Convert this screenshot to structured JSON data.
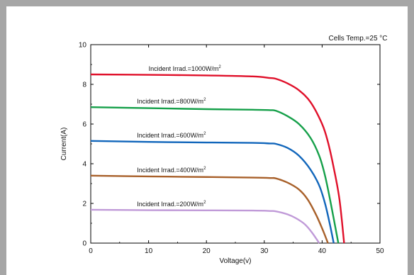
{
  "chart_data": {
    "type": "line",
    "title": "",
    "annotation": "Cells Temp.=25 °C",
    "xlabel": "Voltage(v)",
    "ylabel": "Current(A)",
    "xlim": [
      0,
      50
    ],
    "ylim": [
      0,
      10
    ],
    "xticks": [
      "0",
      "10",
      "20",
      "30",
      "40",
      "50"
    ],
    "yticks": [
      "0",
      "2",
      "4",
      "6",
      "8",
      "10"
    ],
    "grid": false,
    "series": [
      {
        "label_prefix": "Incident Irrad.=1000W/m",
        "label_sup": "2",
        "color": "#e0102a",
        "points": [
          [
            0,
            8.5
          ],
          [
            10,
            8.48
          ],
          [
            20,
            8.45
          ],
          [
            28,
            8.4
          ],
          [
            31,
            8.32
          ],
          [
            32,
            8.28
          ],
          [
            34,
            8.05
          ],
          [
            36,
            7.7
          ],
          [
            38,
            7.1
          ],
          [
            40,
            6.0
          ],
          [
            41,
            5.1
          ],
          [
            42,
            3.8
          ],
          [
            43,
            2.2
          ],
          [
            43.8,
            0
          ]
        ]
      },
      {
        "label_prefix": "Incident Irrad.=800W/m",
        "label_sup": "2",
        "color": "#16a04a",
        "points": [
          [
            0,
            6.85
          ],
          [
            10,
            6.8
          ],
          [
            20,
            6.75
          ],
          [
            28,
            6.72
          ],
          [
            31,
            6.7
          ],
          [
            32,
            6.67
          ],
          [
            34,
            6.4
          ],
          [
            36,
            6.0
          ],
          [
            38,
            5.3
          ],
          [
            39.5,
            4.4
          ],
          [
            40.5,
            3.4
          ],
          [
            41.5,
            2.0
          ],
          [
            42.8,
            0
          ]
        ]
      },
      {
        "label_prefix": "Incident Irrad.=600W/m",
        "label_sup": "2",
        "color": "#1166bb",
        "points": [
          [
            0,
            5.15
          ],
          [
            10,
            5.1
          ],
          [
            20,
            5.07
          ],
          [
            28,
            5.05
          ],
          [
            31,
            5.02
          ],
          [
            32,
            5.0
          ],
          [
            34,
            4.8
          ],
          [
            36,
            4.4
          ],
          [
            38,
            3.7
          ],
          [
            39.5,
            2.9
          ],
          [
            40.5,
            2.0
          ],
          [
            41.3,
            1.0
          ],
          [
            42,
            0
          ]
        ]
      },
      {
        "label_prefix": "Incident Irrad.=400W/m",
        "label_sup": "2",
        "color": "#a8602a",
        "points": [
          [
            0,
            3.4
          ],
          [
            10,
            3.36
          ],
          [
            20,
            3.33
          ],
          [
            28,
            3.3
          ],
          [
            31,
            3.28
          ],
          [
            32,
            3.26
          ],
          [
            34,
            3.05
          ],
          [
            36,
            2.7
          ],
          [
            37.5,
            2.2
          ],
          [
            39,
            1.4
          ],
          [
            40.2,
            0.6
          ],
          [
            41,
            0
          ]
        ]
      },
      {
        "label_prefix": "Incident Irrad.=200W/m",
        "label_sup": "2",
        "color": "#c09ad8",
        "points": [
          [
            0,
            1.68
          ],
          [
            10,
            1.66
          ],
          [
            20,
            1.65
          ],
          [
            28,
            1.64
          ],
          [
            31,
            1.62
          ],
          [
            32,
            1.6
          ],
          [
            34,
            1.45
          ],
          [
            35.5,
            1.25
          ],
          [
            37,
            0.95
          ],
          [
            38.2,
            0.55
          ],
          [
            39.5,
            0
          ]
        ]
      }
    ]
  }
}
